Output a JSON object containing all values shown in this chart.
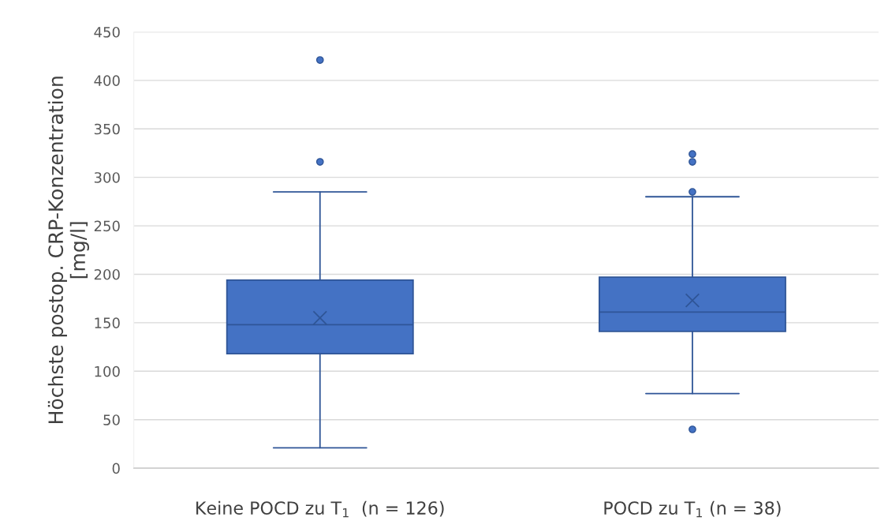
{
  "chart_data": {
    "type": "box",
    "ylabel": "Höchste postop. CRP-Konzentration\n[mg/l]",
    "categories": [
      "Keine POCD zu T$_{1}$  (n = 126)",
      "POCD zu T$_{1}$ (n = 38)"
    ],
    "color": "#4472c4",
    "boxes": [
      {
        "low": 21,
        "q1": 118,
        "median": 148,
        "q3": 194,
        "high": 285,
        "mean": 155,
        "outliers": [
          316,
          421
        ]
      },
      {
        "low": 77,
        "q1": 141,
        "median": 161,
        "q3": 197,
        "high": 280,
        "mean": 173,
        "outliers": [
          40,
          285,
          316,
          324
        ]
      }
    ],
    "ylim": [
      0,
      450
    ],
    "yticks": [
      0,
      50,
      100,
      150,
      200,
      250,
      300,
      350,
      400,
      450
    ],
    "grid": "y"
  }
}
